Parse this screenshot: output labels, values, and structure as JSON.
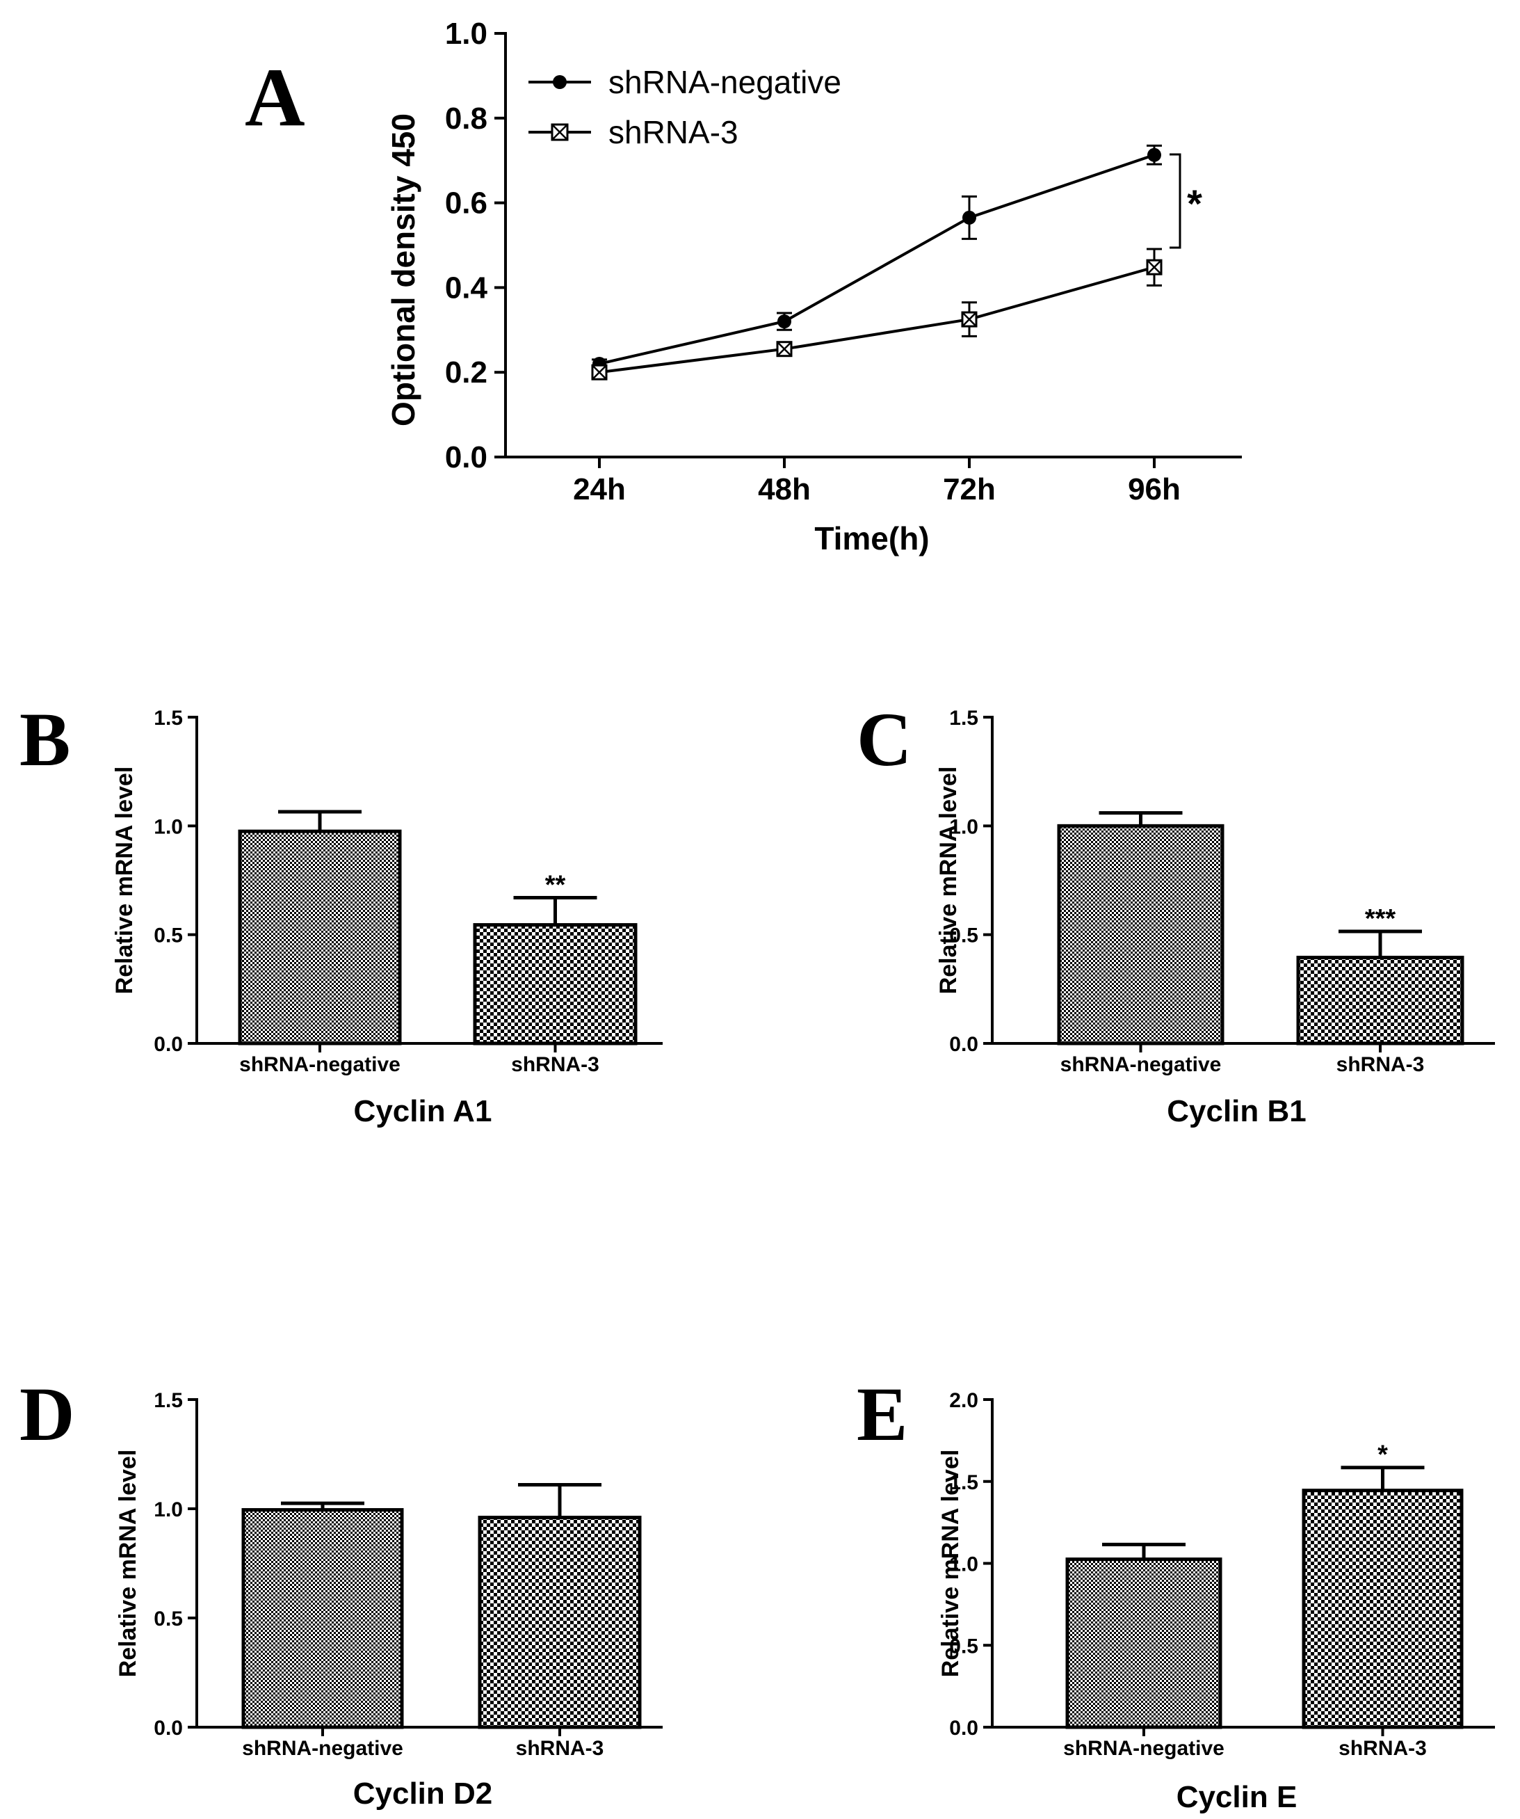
{
  "figure": {
    "panel_labels": [
      "A",
      "B",
      "C",
      "D",
      "E"
    ]
  },
  "chart_data": [
    {
      "panel": "A",
      "type": "line",
      "title": "",
      "xlabel": "Time(h)",
      "ylabel": "Optional density 450",
      "categories": [
        "24h",
        "48h",
        "72h",
        "96h"
      ],
      "ylim": [
        0.0,
        1.0
      ],
      "yticks": [
        "0.0",
        "0.2",
        "0.4",
        "0.6",
        "0.8",
        "1.0"
      ],
      "legend_position": "top-left",
      "series": [
        {
          "name": "shRNA-negative",
          "marker": "filled-circle",
          "values": [
            0.22,
            0.32,
            0.565,
            0.713
          ],
          "errors": [
            0.01,
            0.02,
            0.05,
            0.022
          ]
        },
        {
          "name": "shRNA-3",
          "marker": "crossed-square",
          "values": [
            0.2,
            0.255,
            0.325,
            0.448
          ],
          "errors": [
            0.008,
            0.015,
            0.04,
            0.043
          ]
        }
      ],
      "annotation": {
        "text": "*",
        "between": [
          0,
          1
        ],
        "at_category": "96h"
      }
    },
    {
      "panel": "B",
      "type": "bar",
      "title": "Cyclin A1",
      "xlabel": "Cyclin A1",
      "ylabel": "Relative mRNA level",
      "categories": [
        "shRNA-negative",
        "shRNA-3"
      ],
      "values": [
        0.975,
        0.545
      ],
      "errors": [
        0.09,
        0.125
      ],
      "significance": [
        "",
        "**"
      ],
      "ylim": [
        0.0,
        1.5
      ],
      "yticks": [
        "0.0",
        "0.5",
        "1.0",
        "1.5"
      ]
    },
    {
      "panel": "C",
      "type": "bar",
      "title": "Cyclin B1",
      "xlabel": "Cyclin B1",
      "ylabel": "Relative mRNA level",
      "categories": [
        "shRNA-negative",
        "shRNA-3"
      ],
      "values": [
        1.0,
        0.395
      ],
      "errors": [
        0.06,
        0.12
      ],
      "significance": [
        "",
        "***"
      ],
      "ylim": [
        0.0,
        1.5
      ],
      "yticks": [
        "0.0",
        "0.5",
        "1.0",
        "1.5"
      ]
    },
    {
      "panel": "D",
      "type": "bar",
      "title": "Cyclin D2",
      "xlabel": "Cyclin D2",
      "ylabel": "Relative mRNA level",
      "categories": [
        "shRNA-negative",
        "shRNA-3"
      ],
      "values": [
        0.995,
        0.96
      ],
      "errors": [
        0.03,
        0.15
      ],
      "significance": [
        "",
        ""
      ],
      "ylim": [
        0.0,
        1.5
      ],
      "yticks": [
        "0.0",
        "0.5",
        "1.0",
        "1.5"
      ]
    },
    {
      "panel": "E",
      "type": "bar",
      "title": "Cyclin E",
      "xlabel": "Cyclin E",
      "ylabel": "Relative mRNA level",
      "categories": [
        "shRNA-negative",
        "shRNA-3"
      ],
      "values": [
        1.025,
        1.445
      ],
      "errors": [
        0.09,
        0.14
      ],
      "significance": [
        "",
        "*"
      ],
      "ylim": [
        0.0,
        2.0
      ],
      "yticks": [
        "0.0",
        "0.5",
        "1.0",
        "1.5",
        "2.0"
      ]
    }
  ]
}
